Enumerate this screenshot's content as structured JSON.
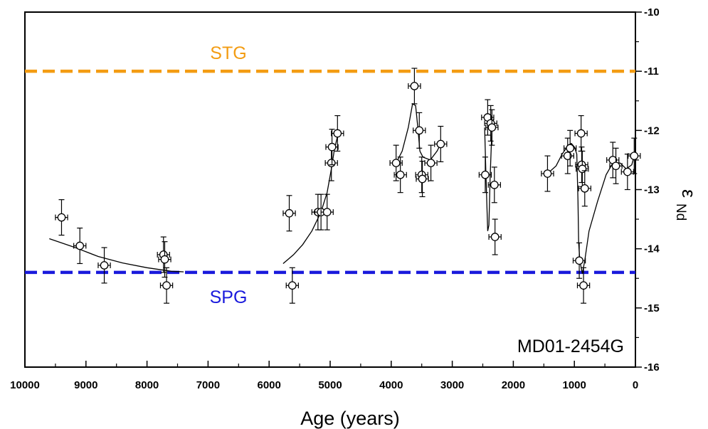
{
  "chart_data": {
    "type": "scatter",
    "x_axis": {
      "label": "Age (years)",
      "range": [
        10000,
        0
      ],
      "reversed": true,
      "ticks": [
        "10000",
        "9000",
        "8000",
        "7000",
        "6000",
        "5000",
        "4000",
        "3000",
        "2000",
        "1000",
        "0"
      ]
    },
    "y_axis": {
      "label_main": "ε",
      "label_sub": "Nd",
      "range": [
        -16,
        -10
      ],
      "position": "right",
      "ticks": [
        "-10",
        "-11",
        "-12",
        "-13",
        "-14",
        "-15",
        "-16"
      ]
    },
    "grid": false,
    "annotation": "MD01-2454G",
    "reference_lines": [
      {
        "name": "STG",
        "y": -11.0,
        "color": "#f39c12",
        "style": "dashed"
      },
      {
        "name": "SPG",
        "y": -14.4,
        "color": "#1a1adc",
        "style": "dashed"
      }
    ],
    "error_bars": {
      "x": 100,
      "y": 0.3
    },
    "points": [
      [
        9400,
        -13.47
      ],
      [
        9100,
        -13.95
      ],
      [
        8700,
        -14.28
      ],
      [
        7730,
        -14.1
      ],
      [
        7710,
        -14.18
      ],
      [
        7680,
        -14.62
      ],
      [
        5670,
        -13.4
      ],
      [
        5620,
        -14.62
      ],
      [
        5200,
        -13.38
      ],
      [
        5150,
        -13.38
      ],
      [
        5050,
        -13.38
      ],
      [
        4980,
        -12.55
      ],
      [
        4970,
        -12.28
      ],
      [
        4880,
        -12.05
      ],
      [
        3920,
        -12.55
      ],
      [
        3850,
        -12.75
      ],
      [
        3620,
        -11.25
      ],
      [
        3540,
        -12.0
      ],
      [
        3500,
        -12.75
      ],
      [
        3490,
        -12.82
      ],
      [
        3350,
        -12.55
      ],
      [
        3190,
        -12.23
      ],
      [
        2460,
        -12.75
      ],
      [
        2420,
        -11.78
      ],
      [
        2370,
        -11.88
      ],
      [
        2350,
        -11.95
      ],
      [
        2310,
        -12.92
      ],
      [
        2300,
        -13.8
      ],
      [
        1440,
        -12.73
      ],
      [
        1110,
        -12.43
      ],
      [
        1070,
        -12.3
      ],
      [
        920,
        -14.2
      ],
      [
        890,
        -12.05
      ],
      [
        880,
        -12.58
      ],
      [
        870,
        -12.65
      ],
      [
        830,
        -12.98
      ],
      [
        850,
        -14.62
      ],
      [
        370,
        -12.5
      ],
      [
        320,
        -12.6
      ],
      [
        130,
        -12.7
      ],
      [
        20,
        -12.43
      ]
    ],
    "curves": [
      [
        [
          9600,
          -13.83
        ],
        [
          9200,
          -13.97
        ],
        [
          8800,
          -14.13
        ],
        [
          8400,
          -14.24
        ],
        [
          8000,
          -14.32
        ],
        [
          7600,
          -14.38
        ],
        [
          7400,
          -14.39
        ]
      ],
      [
        [
          5770,
          -14.25
        ],
        [
          5600,
          -14.1
        ],
        [
          5450,
          -13.93
        ],
        [
          5300,
          -13.7
        ],
        [
          5150,
          -13.38
        ],
        [
          5050,
          -13.05
        ],
        [
          4980,
          -12.65
        ],
        [
          4930,
          -12.32
        ],
        [
          4880,
          -12.1
        ]
      ],
      [
        [
          3920,
          -12.55
        ],
        [
          3820,
          -12.35
        ],
        [
          3720,
          -11.95
        ],
        [
          3650,
          -11.55
        ],
        [
          3600,
          -11.58
        ],
        [
          3560,
          -12.0
        ],
        [
          3530,
          -12.35
        ],
        [
          3480,
          -12.45
        ],
        [
          3360,
          -12.5
        ],
        [
          3250,
          -12.35
        ],
        [
          3190,
          -12.23
        ]
      ],
      [
        [
          2470,
          -11.95
        ],
        [
          2450,
          -12.7
        ],
        [
          2420,
          -13.7
        ],
        [
          2400,
          -13.6
        ],
        [
          2380,
          -12.8
        ],
        [
          2350,
          -11.95
        ],
        [
          2320,
          -11.8
        ]
      ],
      [
        [
          1440,
          -12.73
        ],
        [
          1300,
          -12.6
        ],
        [
          1200,
          -12.4
        ],
        [
          1100,
          -12.25
        ],
        [
          1050,
          -12.22
        ],
        [
          1000,
          -12.28
        ],
        [
          960,
          -12.4
        ],
        [
          940,
          -13.2
        ],
        [
          930,
          -13.9
        ],
        [
          910,
          -14.2
        ],
        [
          870,
          -14.42
        ],
        [
          830,
          -14.2
        ],
        [
          760,
          -13.7
        ],
        [
          620,
          -13.2
        ],
        [
          480,
          -12.75
        ],
        [
          370,
          -12.55
        ],
        [
          250,
          -12.55
        ],
        [
          150,
          -12.65
        ],
        [
          60,
          -12.58
        ],
        [
          20,
          -12.43
        ]
      ]
    ]
  }
}
